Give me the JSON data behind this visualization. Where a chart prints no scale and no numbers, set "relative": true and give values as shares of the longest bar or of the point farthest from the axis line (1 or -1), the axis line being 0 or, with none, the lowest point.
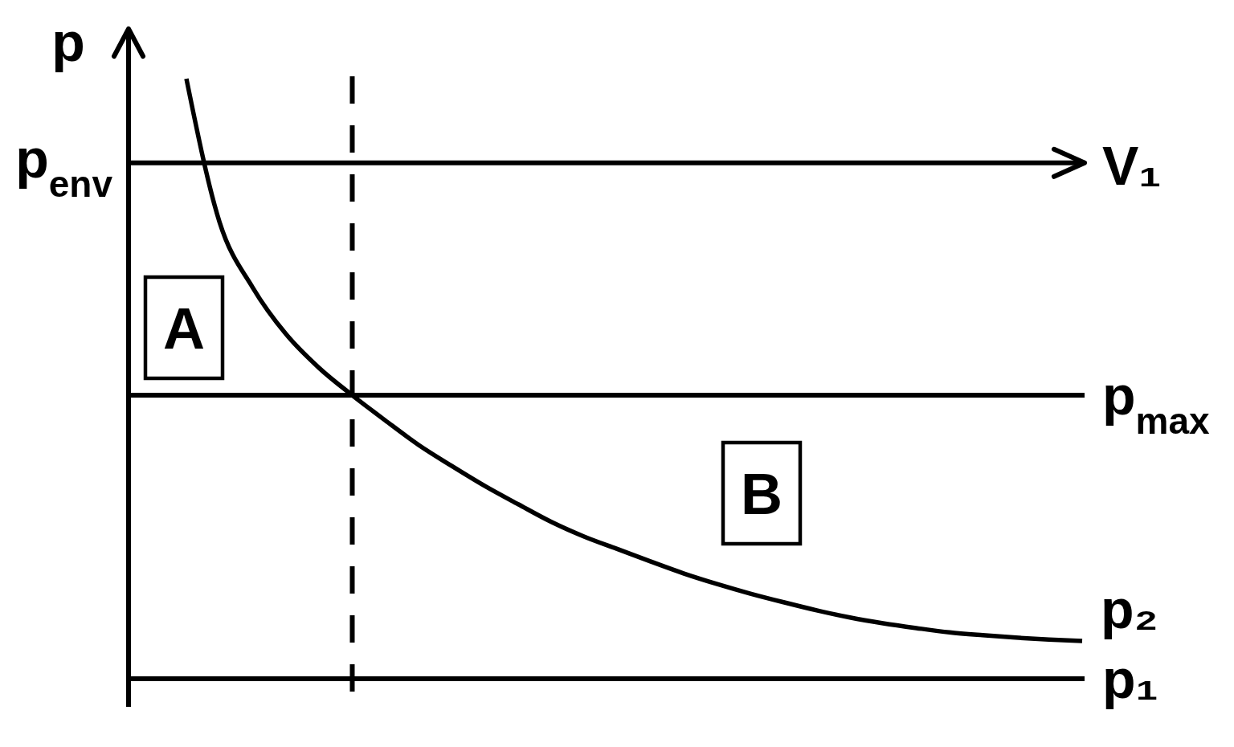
{
  "chart_data": {
    "type": "line",
    "xlabel": "V₁",
    "ylabel": "p",
    "relative": true,
    "categories": [
      null,
      null,
      null,
      null,
      null,
      null,
      null,
      null,
      null,
      null,
      null,
      null,
      null,
      null,
      null,
      null,
      null,
      null,
      null,
      null,
      null,
      null,
      null,
      null,
      null,
      null,
      null,
      null
    ],
    "series": [
      {
        "name": "p₂",
        "color": "#000000",
        "values": [
          0.176,
          -0.124,
          -0.261,
          -0.358,
          -0.429,
          -0.486,
          -0.539,
          -0.59,
          -0.634,
          -0.676,
          -0.714,
          -0.751,
          -0.782,
          -0.808,
          -0.834,
          -0.859,
          -0.881,
          -0.901,
          -0.919,
          -0.936,
          -0.951,
          -0.963,
          -0.973,
          -0.982,
          -0.988,
          -0.993,
          -0.997,
          -1
        ]
      }
    ],
    "ref_lines": [
      {
        "axis": "y",
        "value": 0,
        "label": "p$_{env}$"
      },
      {
        "axis": "y",
        "value": -0.486,
        "label": "p$_{max}$"
      },
      {
        "axis": "y",
        "value": -1.079,
        "label": "p₁"
      }
    ],
    "annotations": [
      "A",
      "B"
    ]
  }
}
